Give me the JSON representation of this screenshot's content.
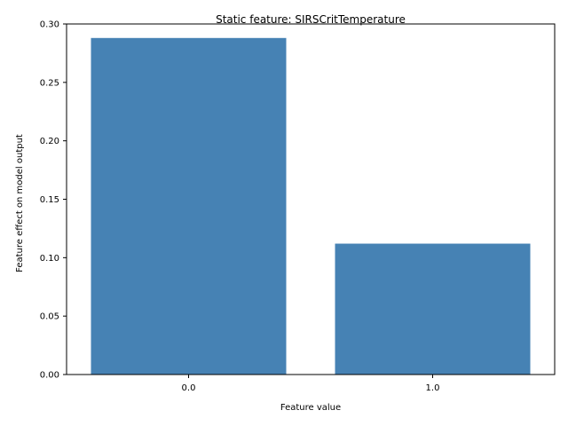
{
  "chart_data": {
    "type": "bar",
    "title": "Static feature: SIRSCritTemperature",
    "xlabel": "Feature value",
    "ylabel": "Feature effect on model output",
    "categories": [
      "0.0",
      "1.0"
    ],
    "values": [
      0.288,
      0.112
    ],
    "ylim": [
      0,
      0.3
    ],
    "yticks": [
      0.0,
      0.05,
      0.1,
      0.15,
      0.2,
      0.25,
      0.3
    ],
    "ytick_labels": [
      "0.00",
      "0.05",
      "0.10",
      "0.15",
      "0.20",
      "0.25",
      "0.30"
    ],
    "grid": false,
    "legend": "none",
    "bar_color": "#4682b4"
  }
}
